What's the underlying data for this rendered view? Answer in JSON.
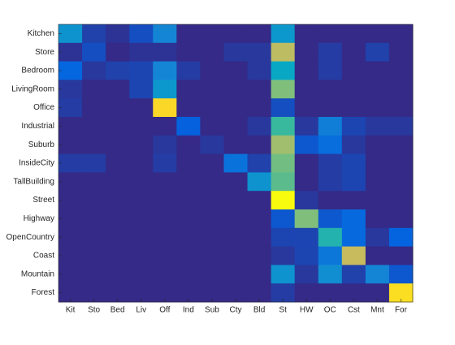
{
  "chart_data": {
    "type": "heatmap",
    "rows": [
      "Kitchen",
      "Store",
      "Bedroom",
      "LivingRoom",
      "Office",
      "Industrial",
      "Suburb",
      "InsideCity",
      "TallBuilding",
      "Street",
      "Highway",
      "OpenCountry",
      "Coast",
      "Mountain",
      "Forest"
    ],
    "columns": [
      "Kit",
      "Sto",
      "Bed",
      "Liv",
      "Off",
      "Ind",
      "Sub",
      "Cty",
      "Bld",
      "St",
      "HW",
      "OC",
      "Cst",
      "Mnt",
      "For"
    ],
    "values": [
      [
        0.3,
        0.05,
        0.02,
        0.08,
        0.25,
        0,
        0,
        0,
        0,
        0.32,
        0,
        0,
        0,
        0,
        0
      ],
      [
        0.02,
        0.08,
        0,
        0.02,
        0.02,
        0,
        0,
        0.03,
        0.03,
        0.7,
        0,
        0.04,
        0,
        0.05,
        0
      ],
      [
        0.14,
        0.03,
        0.05,
        0.06,
        0.25,
        0.04,
        0,
        0,
        0.03,
        0.38,
        0,
        0.04,
        0,
        0,
        0
      ],
      [
        0.03,
        0,
        0,
        0.06,
        0.32,
        0,
        0,
        0,
        0,
        0.6,
        0,
        0,
        0,
        0,
        0
      ],
      [
        0.04,
        0,
        0,
        0,
        0.9,
        0,
        0,
        0,
        0,
        0.08,
        0,
        0,
        0,
        0,
        0
      ],
      [
        0,
        0,
        0,
        0,
        0,
        0.12,
        0,
        0,
        0.03,
        0.5,
        0.03,
        0.22,
        0.06,
        0.03,
        0.03
      ],
      [
        0,
        0,
        0,
        0,
        0.03,
        0,
        0.03,
        0,
        0,
        0.65,
        0.1,
        0.16,
        0.03,
        0,
        0
      ],
      [
        0.04,
        0.04,
        0,
        0,
        0.04,
        0,
        0,
        0.18,
        0.05,
        0.58,
        0,
        0.04,
        0.06,
        0,
        0
      ],
      [
        0,
        0,
        0,
        0,
        0,
        0,
        0,
        0,
        0.3,
        0.55,
        0,
        0.04,
        0.06,
        0,
        0
      ],
      [
        0,
        0,
        0,
        0,
        0,
        0,
        0,
        0,
        0,
        1,
        0.03,
        0,
        0,
        0,
        0
      ],
      [
        0,
        0,
        0,
        0,
        0,
        0,
        0,
        0,
        0,
        0.1,
        0.6,
        0.1,
        0.15,
        0,
        0
      ],
      [
        0,
        0,
        0,
        0,
        0,
        0,
        0,
        0,
        0,
        0.06,
        0.06,
        0.45,
        0.15,
        0.03,
        0.13
      ],
      [
        0,
        0,
        0,
        0,
        0,
        0,
        0,
        0,
        0,
        0.03,
        0.06,
        0.2,
        0.72,
        0,
        0
      ],
      [
        0,
        0,
        0,
        0,
        0,
        0,
        0,
        0,
        0,
        0.3,
        0.03,
        0.28,
        0.05,
        0.25,
        0.1
      ],
      [
        0,
        0,
        0,
        0,
        0,
        0,
        0,
        0,
        0,
        0.04,
        0,
        0,
        0,
        0,
        0.92
      ]
    ],
    "clim": [
      0,
      1
    ],
    "colormap": [
      "#352a87",
      "#0363e1",
      "#1485d4",
      "#06a7c6",
      "#38b99e",
      "#92bf73",
      "#d9ba56",
      "#fcce2e",
      "#f9fb0e"
    ]
  }
}
